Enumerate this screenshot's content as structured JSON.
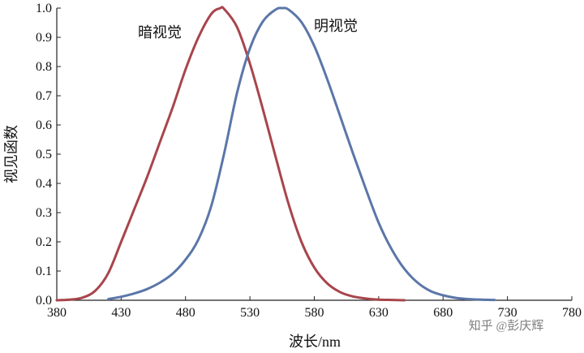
{
  "chart_data": {
    "type": "line",
    "title": "",
    "xlabel": "波长/nm",
    "ylabel": "视见函数",
    "xlim": [
      380,
      780
    ],
    "ylim": [
      0,
      1.0
    ],
    "x_ticks": [
      380,
      430,
      480,
      530,
      580,
      630,
      680,
      730,
      780
    ],
    "y_ticks": [
      0.0,
      0.1,
      0.2,
      0.3,
      0.4,
      0.5,
      0.6,
      0.7,
      0.8,
      0.9,
      1.0
    ],
    "x_tick_labels": [
      "380",
      "430",
      "480",
      "530",
      "580",
      "630",
      "680",
      "730",
      "780"
    ],
    "y_tick_labels": [
      "0.0",
      "0.1",
      "0.2",
      "0.3",
      "0.4",
      "0.5",
      "0.6",
      "0.7",
      "0.8",
      "0.9",
      "1.0"
    ],
    "grid": false,
    "series": [
      {
        "name": "暗视觉",
        "color": "#a8454c",
        "x": [
          380,
          390,
          400,
          410,
          420,
          430,
          440,
          450,
          460,
          470,
          480,
          490,
          500,
          507,
          510,
          520,
          530,
          540,
          550,
          560,
          570,
          580,
          590,
          600,
          610,
          620,
          630,
          640,
          650
        ],
        "y": [
          0.0,
          0.002,
          0.009,
          0.033,
          0.093,
          0.2,
          0.31,
          0.42,
          0.54,
          0.66,
          0.79,
          0.9,
          0.98,
          1.0,
          0.997,
          0.935,
          0.81,
          0.655,
          0.49,
          0.33,
          0.2,
          0.112,
          0.058,
          0.028,
          0.013,
          0.006,
          0.002,
          0.001,
          0.0
        ]
      },
      {
        "name": "明视觉",
        "color": "#5b76a8",
        "x": [
          420,
          430,
          440,
          450,
          460,
          470,
          480,
          490,
          500,
          510,
          520,
          530,
          540,
          550,
          555,
          560,
          570,
          580,
          590,
          600,
          610,
          620,
          630,
          640,
          650,
          660,
          670,
          680,
          690,
          700,
          710,
          720
        ],
        "y": [
          0.004,
          0.012,
          0.023,
          0.038,
          0.06,
          0.091,
          0.139,
          0.208,
          0.323,
          0.503,
          0.71,
          0.862,
          0.954,
          0.995,
          1.0,
          0.995,
          0.952,
          0.87,
          0.757,
          0.631,
          0.503,
          0.381,
          0.265,
          0.175,
          0.107,
          0.061,
          0.032,
          0.017,
          0.008,
          0.004,
          0.002,
          0.001
        ]
      }
    ],
    "annotations": [
      {
        "text": "暗视觉",
        "series": 0
      },
      {
        "text": "明视觉",
        "series": 1
      }
    ]
  },
  "watermark": "知乎 @彭庆辉"
}
